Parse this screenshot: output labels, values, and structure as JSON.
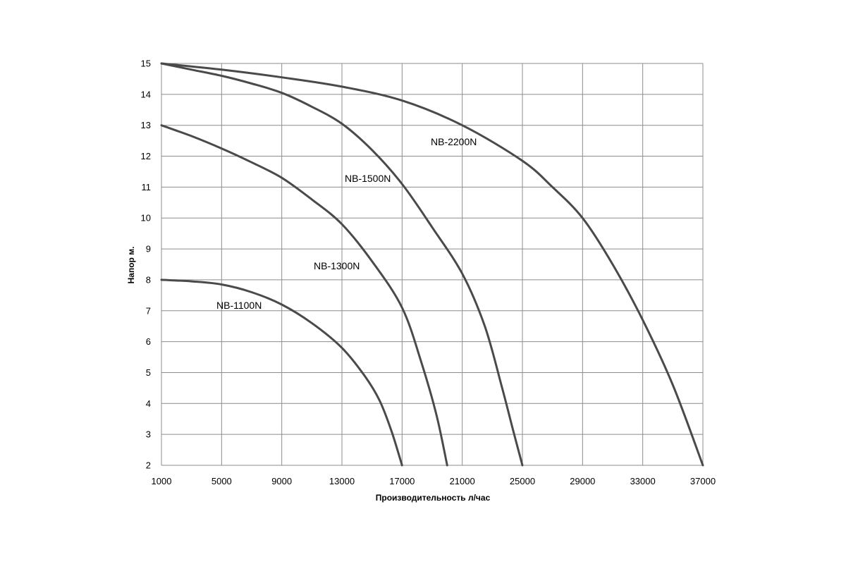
{
  "chart_data": {
    "type": "line",
    "xlabel": "Производительность  л/час",
    "ylabel": "Напор м.",
    "xlim": [
      1000,
      37000
    ],
    "ylim": [
      2,
      15
    ],
    "x_ticks": [
      "1000",
      "5000",
      "9000",
      "13000",
      "17000",
      "21000",
      "25000",
      "29000",
      "33000",
      "37000"
    ],
    "y_ticks": [
      "2",
      "3",
      "4",
      "5",
      "6",
      "7",
      "8",
      "9",
      "10",
      "11",
      "12",
      "13",
      "14",
      "15"
    ],
    "grid": true,
    "legend": "none",
    "series": [
      {
        "name": "NB-1100N",
        "points": [
          [
            1000,
            8
          ],
          [
            3000,
            7.95
          ],
          [
            5000,
            7.85
          ],
          [
            7000,
            7.6
          ],
          [
            9000,
            7.2
          ],
          [
            11000,
            6.6
          ],
          [
            13000,
            5.8
          ],
          [
            14500,
            4.9
          ],
          [
            15500,
            4.1
          ],
          [
            16300,
            3.1
          ],
          [
            17000,
            2
          ]
        ]
      },
      {
        "name": "NB-1300N",
        "points": [
          [
            1000,
            13
          ],
          [
            3000,
            12.65
          ],
          [
            5000,
            12.25
          ],
          [
            7000,
            11.8
          ],
          [
            9000,
            11.3
          ],
          [
            11000,
            10.6
          ],
          [
            13000,
            9.8
          ],
          [
            15000,
            8.6
          ],
          [
            17000,
            7.1
          ],
          [
            18300,
            5.3
          ],
          [
            19300,
            3.6
          ],
          [
            20000,
            2
          ]
        ]
      },
      {
        "name": "NB-1500N",
        "points": [
          [
            1000,
            15
          ],
          [
            3000,
            14.8
          ],
          [
            5000,
            14.6
          ],
          [
            7000,
            14.35
          ],
          [
            9000,
            14.05
          ],
          [
            11000,
            13.6
          ],
          [
            13000,
            13.05
          ],
          [
            15000,
            12.2
          ],
          [
            17000,
            11.1
          ],
          [
            19000,
            9.7
          ],
          [
            21000,
            8.2
          ],
          [
            22500,
            6.5
          ],
          [
            23600,
            4.6
          ],
          [
            24400,
            3.1
          ],
          [
            25000,
            2
          ]
        ]
      },
      {
        "name": "NB-2200N",
        "points": [
          [
            1000,
            15
          ],
          [
            5000,
            14.8
          ],
          [
            9000,
            14.55
          ],
          [
            13000,
            14.25
          ],
          [
            17000,
            13.8
          ],
          [
            21000,
            13.0
          ],
          [
            25000,
            11.85
          ],
          [
            27000,
            11.0
          ],
          [
            29000,
            10.0
          ],
          [
            31000,
            8.5
          ],
          [
            33000,
            6.7
          ],
          [
            35000,
            4.6
          ],
          [
            37000,
            2
          ]
        ]
      }
    ]
  }
}
